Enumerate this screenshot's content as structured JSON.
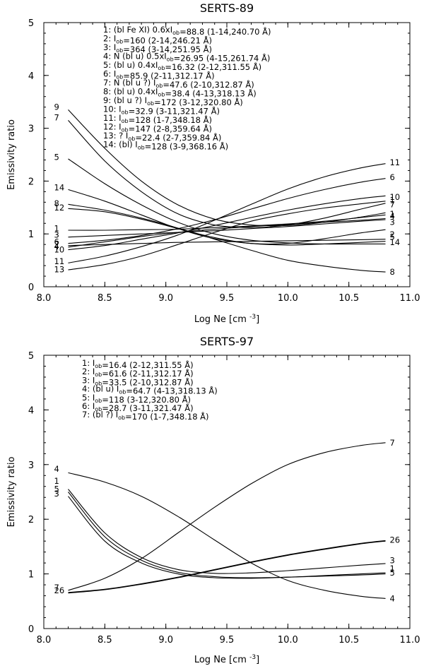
{
  "chart_data": [
    {
      "type": "line",
      "title": "SERTS-89",
      "xlabel": "Log Ne [cm^-3]",
      "xlabel_main": "Log Ne [cm",
      "xlabel_exp": "-3",
      "xlabel_close": "]",
      "ylabel": "Emissivity ratio",
      "xlim": [
        8.0,
        11.0
      ],
      "ylim": [
        0,
        5
      ],
      "xticks": [
        "8.0",
        "8.5",
        "9.0",
        "9.5",
        "10.0",
        "10.5",
        "11.0"
      ],
      "yticks": [
        "0",
        "1",
        "2",
        "3",
        "4",
        "5"
      ],
      "legend": [
        {
          "num": "1:",
          "text": "(bl Fe XI) 0.6xI_ob=88.8 (1-14,240.70 Å)"
        },
        {
          "num": "2:",
          "text": "I_ob=160 (2-14,246.21 Å)"
        },
        {
          "num": "3:",
          "text": "I_ob=364 (3-14,251.95 Å)"
        },
        {
          "num": "4:",
          "text": "N (bl u) 0.5xI_ob=26.95 (4-15,261.74 Å)"
        },
        {
          "num": "5:",
          "text": "(bl u) 0.4xI_ob=16.32 (2-12,311.55 Å)"
        },
        {
          "num": "6:",
          "text": "I_ob=85.9 (2-11,312.17 Å)"
        },
        {
          "num": "7:",
          "text": "N (bl u ?) I_ob=47.6 (2-10,312.87 Å)"
        },
        {
          "num": "8:",
          "text": "(bl u) 0.4xI_ob=38.4 (4-13,318.13 Å)"
        },
        {
          "num": "9:",
          "text": "(bl u ?) I_ob=172 (3-12,320.80 Å)"
        },
        {
          "num": "10:",
          "text": "I_ob=32.9 (3-11,321.47 Å)"
        },
        {
          "num": "11:",
          "text": "I_ob=128 (1-7,348.18 Å)"
        },
        {
          "num": "12:",
          "text": "I_ob=147 (2-8,359.64 Å)"
        },
        {
          "num": "13:",
          "text": "? I_ob=22.4 (2-7,359.84 Å)"
        },
        {
          "num": "14:",
          "text": "(bl) I_ob=128 (3-9,368.16 Å)"
        }
      ],
      "x": [
        8.2,
        8.5,
        8.8,
        9.1,
        9.4,
        9.7,
        10.0,
        10.3,
        10.6,
        10.8
      ],
      "series": [
        {
          "name": "1",
          "values": [
            1.07,
            1.07,
            1.08,
            1.09,
            1.12,
            1.15,
            1.19,
            1.24,
            1.31,
            1.36
          ]
        },
        {
          "name": "2",
          "values": [
            0.78,
            0.8,
            0.82,
            0.84,
            0.85,
            0.86,
            0.87,
            0.88,
            0.89,
            0.9
          ]
        },
        {
          "name": "3",
          "values": [
            0.94,
            0.97,
            1.0,
            1.03,
            1.06,
            1.1,
            1.14,
            1.19,
            1.24,
            1.27
          ]
        },
        {
          "name": "4",
          "values": [
            0.75,
            0.85,
            0.95,
            1.03,
            1.09,
            1.14,
            1.18,
            1.22,
            1.26,
            1.29
          ]
        },
        {
          "name": "5",
          "values": [
            2.42,
            1.95,
            1.55,
            1.22,
            1.0,
            0.88,
            0.83,
            0.81,
            0.81,
            0.81
          ]
        },
        {
          "name": "6",
          "values": [
            0.82,
            0.88,
            0.97,
            1.1,
            1.27,
            1.47,
            1.67,
            1.84,
            1.98,
            2.05
          ]
        },
        {
          "name": "7",
          "values": [
            3.15,
            2.38,
            1.8,
            1.38,
            1.17,
            1.12,
            1.17,
            1.3,
            1.47,
            1.58
          ]
        },
        {
          "name": "8",
          "values": [
            1.56,
            1.45,
            1.3,
            1.11,
            0.9,
            0.69,
            0.5,
            0.39,
            0.31,
            0.28
          ]
        },
        {
          "name": "9",
          "values": [
            3.35,
            2.62,
            2.0,
            1.55,
            1.28,
            1.17,
            1.16,
            1.22,
            1.32,
            1.4
          ]
        },
        {
          "name": "10",
          "values": [
            0.7,
            0.78,
            0.9,
            1.02,
            1.16,
            1.31,
            1.45,
            1.57,
            1.67,
            1.72
          ]
        },
        {
          "name": "11",
          "values": [
            0.45,
            0.58,
            0.76,
            0.98,
            1.26,
            1.56,
            1.85,
            2.08,
            2.25,
            2.33
          ]
        },
        {
          "name": "12",
          "values": [
            1.48,
            1.42,
            1.28,
            1.1,
            0.93,
            0.82,
            0.82,
            0.91,
            1.02,
            1.08
          ]
        },
        {
          "name": "13",
          "values": [
            0.32,
            0.42,
            0.58,
            0.8,
            1.03,
            1.24,
            1.38,
            1.49,
            1.57,
            1.62
          ]
        },
        {
          "name": "14",
          "values": [
            1.84,
            1.62,
            1.36,
            1.1,
            0.91,
            0.82,
            0.79,
            0.81,
            0.84,
            0.86
          ]
        }
      ],
      "start_labels": [
        {
          "name": "9",
          "y": 3.4
        },
        {
          "name": "7",
          "y": 3.2
        },
        {
          "name": "5",
          "y": 2.45
        },
        {
          "name": "14",
          "y": 1.88
        },
        {
          "name": "8",
          "y": 1.58
        },
        {
          "name": "12",
          "y": 1.5
        },
        {
          "name": "1",
          "y": 1.1
        },
        {
          "name": "3",
          "y": 0.98
        },
        {
          "name": "6",
          "y": 0.85
        },
        {
          "name": "2",
          "y": 0.8
        },
        {
          "name": "4",
          "y": 0.76
        },
        {
          "name": "10",
          "y": 0.7
        },
        {
          "name": "11",
          "y": 0.48
        },
        {
          "name": "13",
          "y": 0.33
        }
      ],
      "end_labels": [
        {
          "name": "11",
          "y": 2.35
        },
        {
          "name": "6",
          "y": 2.07
        },
        {
          "name": "10",
          "y": 1.7
        },
        {
          "name": "1",
          "y": 1.64
        },
        {
          "name": "7",
          "y": 1.56
        },
        {
          "name": "1",
          "y": 1.38
        },
        {
          "name": "4",
          "y": 1.34
        },
        {
          "name": "3",
          "y": 1.22
        },
        {
          "name": "2",
          "y": 0.99
        },
        {
          "name": "5",
          "y": 0.94
        },
        {
          "name": "14",
          "y": 0.84
        },
        {
          "name": "8",
          "y": 0.28
        }
      ]
    },
    {
      "type": "line",
      "title": "SERTS-97",
      "xlabel": "Log Ne [cm^-3]",
      "xlabel_main": "Log Ne [cm",
      "xlabel_exp": "-3",
      "xlabel_close": "]",
      "ylabel": "Emissivity ratio",
      "xlim": [
        8.0,
        11.0
      ],
      "ylim": [
        0,
        5
      ],
      "xticks": [
        "8.0",
        "8.5",
        "9.0",
        "9.5",
        "10.0",
        "10.5",
        "11.0"
      ],
      "yticks": [
        "0",
        "1",
        "2",
        "3",
        "4",
        "5"
      ],
      "legend": [
        {
          "num": "1:",
          "text": "I_ob=16.4 (2-12,311.55 Å)"
        },
        {
          "num": "2:",
          "text": "I_ob=61.6 (2-11,312.17 Å)"
        },
        {
          "num": "3:",
          "text": "I_ob=33.5 (2-10,312.87 Å)"
        },
        {
          "num": "4:",
          "text": "(bl u) I_ob=64.7 (4-13,318.13 Å)"
        },
        {
          "num": "5:",
          "text": "I_ob=118 (3-12,320.80 Å)"
        },
        {
          "num": "6:",
          "text": "I_ob=28.7 (3-11,321.47 Å)"
        },
        {
          "num": "7:",
          "text": "(bl ?) I_ob=170 (1-7,348.18 Å)"
        }
      ],
      "x": [
        8.2,
        8.5,
        8.8,
        9.1,
        9.4,
        9.7,
        10.0,
        10.3,
        10.6,
        10.8
      ],
      "series": [
        {
          "name": "1",
          "values": [
            2.42,
            1.6,
            1.2,
            1.0,
            0.93,
            0.92,
            0.94,
            0.97,
            1.0,
            1.02
          ]
        },
        {
          "name": "2",
          "values": [
            0.66,
            0.72,
            0.82,
            0.94,
            1.08,
            1.22,
            1.35,
            1.46,
            1.56,
            1.61
          ]
        },
        {
          "name": "3",
          "values": [
            2.55,
            1.75,
            1.3,
            1.08,
            1.01,
            1.02,
            1.06,
            1.11,
            1.16,
            1.19
          ]
        },
        {
          "name": "4",
          "values": [
            2.85,
            2.68,
            2.42,
            2.05,
            1.62,
            1.2,
            0.88,
            0.7,
            0.59,
            0.55
          ]
        },
        {
          "name": "5",
          "values": [
            2.5,
            1.68,
            1.25,
            1.03,
            0.95,
            0.93,
            0.94,
            0.96,
            0.98,
            1.0
          ]
        },
        {
          "name": "6",
          "values": [
            0.65,
            0.71,
            0.81,
            0.93,
            1.07,
            1.21,
            1.34,
            1.45,
            1.55,
            1.6
          ]
        },
        {
          "name": "7",
          "values": [
            0.7,
            0.92,
            1.28,
            1.75,
            2.22,
            2.65,
            3.0,
            3.22,
            3.35,
            3.4
          ]
        }
      ],
      "start_labels": [
        {
          "name": "4",
          "y": 2.92
        },
        {
          "name": "1",
          "y": 2.7
        },
        {
          "name": "5",
          "y": 2.55
        },
        {
          "name": "3",
          "y": 2.47
        },
        {
          "name": "26",
          "y": 0.7
        },
        {
          "name": "7",
          "y": 0.75
        }
      ],
      "end_labels": [
        {
          "name": "7",
          "y": 3.4
        },
        {
          "name": "26",
          "y": 1.62
        },
        {
          "name": "3",
          "y": 1.25
        },
        {
          "name": "1",
          "y": 1.1
        },
        {
          "name": "5",
          "y": 1.02
        },
        {
          "name": "4",
          "y": 0.55
        }
      ]
    }
  ]
}
